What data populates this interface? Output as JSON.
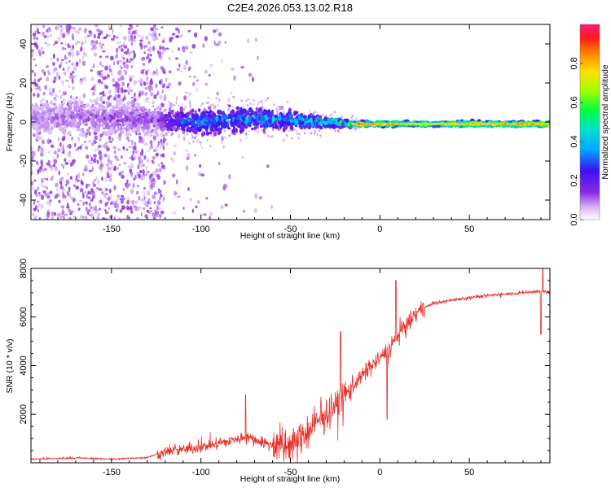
{
  "figure": {
    "title": "C2E4.2026.053.13.02.R18"
  },
  "chart_data": [
    {
      "type": "heatmap",
      "name": "spectrogram",
      "xlabel": "Height of straight line (km)",
      "ylabel": "Frequency (Hz)",
      "xlim": [
        -195,
        95
      ],
      "ylim": [
        -50,
        50
      ],
      "x_ticks": [
        -150,
        -100,
        -50,
        0,
        50
      ],
      "y_ticks": [
        -40,
        -20,
        0,
        20,
        40
      ],
      "colorbar": {
        "label": "Normalized spectral amplitude",
        "range": [
          0,
          1
        ],
        "ticks": [
          "0.0",
          "0.2",
          "0.4",
          "0.6",
          "0.8"
        ]
      },
      "band_center_hz": [
        {
          "x": -195,
          "y": 2
        },
        {
          "x": -150,
          "y": 2
        },
        {
          "x": -125,
          "y": 1
        },
        {
          "x": -100,
          "y": 0
        },
        {
          "x": -70,
          "y": 2
        },
        {
          "x": -50,
          "y": 1
        },
        {
          "x": -30,
          "y": 0
        },
        {
          "x": -15,
          "y": -1
        },
        {
          "x": 0,
          "y": -1
        },
        {
          "x": 95,
          "y": -1
        }
      ],
      "band_halfwidth_hz": [
        {
          "x": -195,
          "y": 12
        },
        {
          "x": -150,
          "y": 12
        },
        {
          "x": -120,
          "y": 8
        },
        {
          "x": -80,
          "y": 8
        },
        {
          "x": -50,
          "y": 6
        },
        {
          "x": -25,
          "y": 3
        },
        {
          "x": -10,
          "y": 2
        },
        {
          "x": 95,
          "y": 2
        }
      ],
      "peak_amplitude": [
        {
          "x": -195,
          "y": 0.1
        },
        {
          "x": -125,
          "y": 0.15
        },
        {
          "x": -110,
          "y": 0.35
        },
        {
          "x": -80,
          "y": 0.4
        },
        {
          "x": -40,
          "y": 0.45
        },
        {
          "x": -20,
          "y": 0.6
        },
        {
          "x": -10,
          "y": 0.9
        },
        {
          "x": 0,
          "y": 0.85
        },
        {
          "x": 20,
          "y": 0.75
        },
        {
          "x": 95,
          "y": 0.85
        }
      ]
    },
    {
      "type": "line",
      "name": "snr",
      "xlabel": "Height of straight line (km)",
      "ylabel": "SNR (10 * v/v)",
      "xlim": [
        -195,
        95
      ],
      "ylim": [
        0,
        8000
      ],
      "x_ticks": [
        -150,
        -100,
        -50,
        0,
        50
      ],
      "y_ticks": [
        2000,
        4000,
        6000,
        8000
      ],
      "color": "#e8302a",
      "series": [
        {
          "name": "SNR",
          "points": [
            {
              "x": -195,
              "y": 150
            },
            {
              "x": -170,
              "y": 200
            },
            {
              "x": -150,
              "y": 150
            },
            {
              "x": -130,
              "y": 220
            },
            {
              "x": -120,
              "y": 450
            },
            {
              "x": -100,
              "y": 650
            },
            {
              "x": -80,
              "y": 950
            },
            {
              "x": -75,
              "y": 1100
            },
            {
              "x": -60,
              "y": 700
            },
            {
              "x": -50,
              "y": 650
            },
            {
              "x": -40,
              "y": 1300
            },
            {
              "x": -30,
              "y": 2000
            },
            {
              "x": -20,
              "y": 2700
            },
            {
              "x": -15,
              "y": 3200
            },
            {
              "x": -10,
              "y": 3600
            },
            {
              "x": -5,
              "y": 4000
            },
            {
              "x": 0,
              "y": 4300
            },
            {
              "x": 5,
              "y": 4700
            },
            {
              "x": 10,
              "y": 5200
            },
            {
              "x": 15,
              "y": 5700
            },
            {
              "x": 20,
              "y": 6100
            },
            {
              "x": 25,
              "y": 6400
            },
            {
              "x": 30,
              "y": 6550
            },
            {
              "x": 40,
              "y": 6700
            },
            {
              "x": 50,
              "y": 6800
            },
            {
              "x": 60,
              "y": 6880
            },
            {
              "x": 70,
              "y": 6950
            },
            {
              "x": 80,
              "y": 7000
            },
            {
              "x": 88,
              "y": 7050
            },
            {
              "x": 95,
              "y": 7050
            }
          ],
          "spikes": [
            {
              "x": -75,
              "y": 2800
            },
            {
              "x": -22,
              "y": 5400
            },
            {
              "x": 4,
              "y": 1800
            },
            {
              "x": 9,
              "y": 7500
            },
            {
              "x": 90,
              "y": 5300
            },
            {
              "x": 91,
              "y": 8000
            }
          ]
        }
      ]
    }
  ]
}
